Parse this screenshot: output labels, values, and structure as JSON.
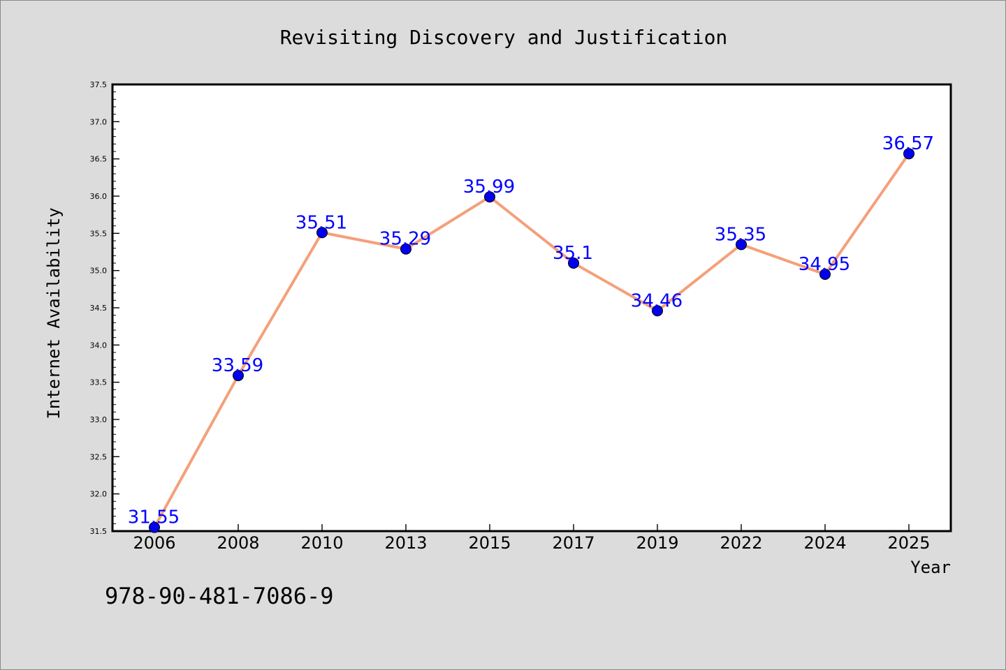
{
  "chart_data": {
    "type": "line",
    "title": "Revisiting Discovery and Justification",
    "xlabel": "Year",
    "ylabel": "Internet Availability",
    "categories": [
      "2006",
      "2008",
      "2010",
      "2013",
      "2015",
      "2017",
      "2019",
      "2022",
      "2024",
      "2025"
    ],
    "series": [
      {
        "values": [
          31.55,
          33.59,
          35.51,
          35.29,
          35.99,
          35.1,
          34.46,
          35.35,
          34.95,
          36.57
        ],
        "data_labels": [
          "31.55",
          "33.59",
          "35.51",
          "35.29",
          "35.99",
          "35.1",
          "34.46",
          "35.35",
          "34.95",
          "36.57"
        ]
      }
    ],
    "ylim": [
      31.5,
      37.5
    ],
    "yticks": [
      "31.5",
      "32.0",
      "32.5",
      "33.0",
      "33.5",
      "34.0",
      "34.5",
      "35.0",
      "35.5",
      "36.0",
      "36.5",
      "37.0",
      "37.5"
    ],
    "grid": false,
    "line_color": "#f4a07a",
    "marker_color": "#0000ee",
    "label_color": "#0000ff",
    "footer_text": "978-90-481-7086-9"
  }
}
